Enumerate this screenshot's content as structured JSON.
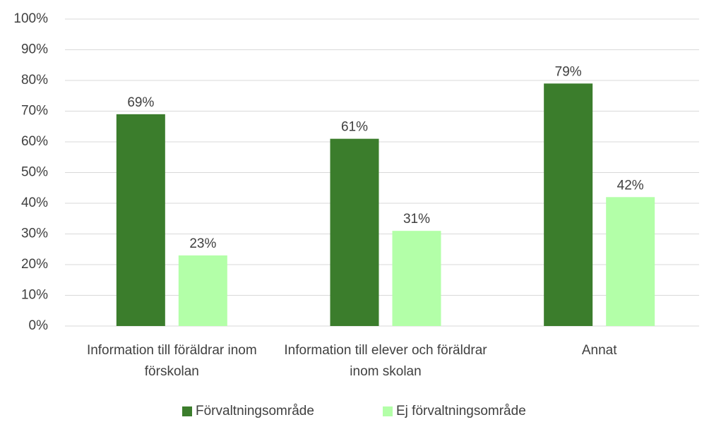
{
  "chart_data": {
    "type": "bar",
    "categories": [
      "Information till föräldrar inom förskolan",
      "Information till elever och föräldrar inom skolan",
      "Annat"
    ],
    "series": [
      {
        "name": "Förvaltningsområde",
        "color": "#3b7d2c",
        "values": [
          69,
          61,
          79
        ],
        "value_labels": [
          "69%",
          "61%",
          "79%"
        ]
      },
      {
        "name": "Ej förvaltningsområde",
        "color": "#b3ffa8",
        "values": [
          23,
          31,
          42
        ],
        "value_labels": [
          "23%",
          "31%",
          "42%"
        ]
      }
    ],
    "ylim": [
      0,
      100
    ],
    "yticks": [
      {
        "value": 0,
        "label": "0%"
      },
      {
        "value": 10,
        "label": "10%"
      },
      {
        "value": 20,
        "label": "20%"
      },
      {
        "value": 30,
        "label": "30%"
      },
      {
        "value": 40,
        "label": "40%"
      },
      {
        "value": 50,
        "label": "50%"
      },
      {
        "value": 60,
        "label": "60%"
      },
      {
        "value": 70,
        "label": "70%"
      },
      {
        "value": 80,
        "label": "80%"
      },
      {
        "value": 90,
        "label": "90%"
      },
      {
        "value": 100,
        "label": "100%"
      }
    ],
    "grid": true,
    "legend": "bottom"
  }
}
